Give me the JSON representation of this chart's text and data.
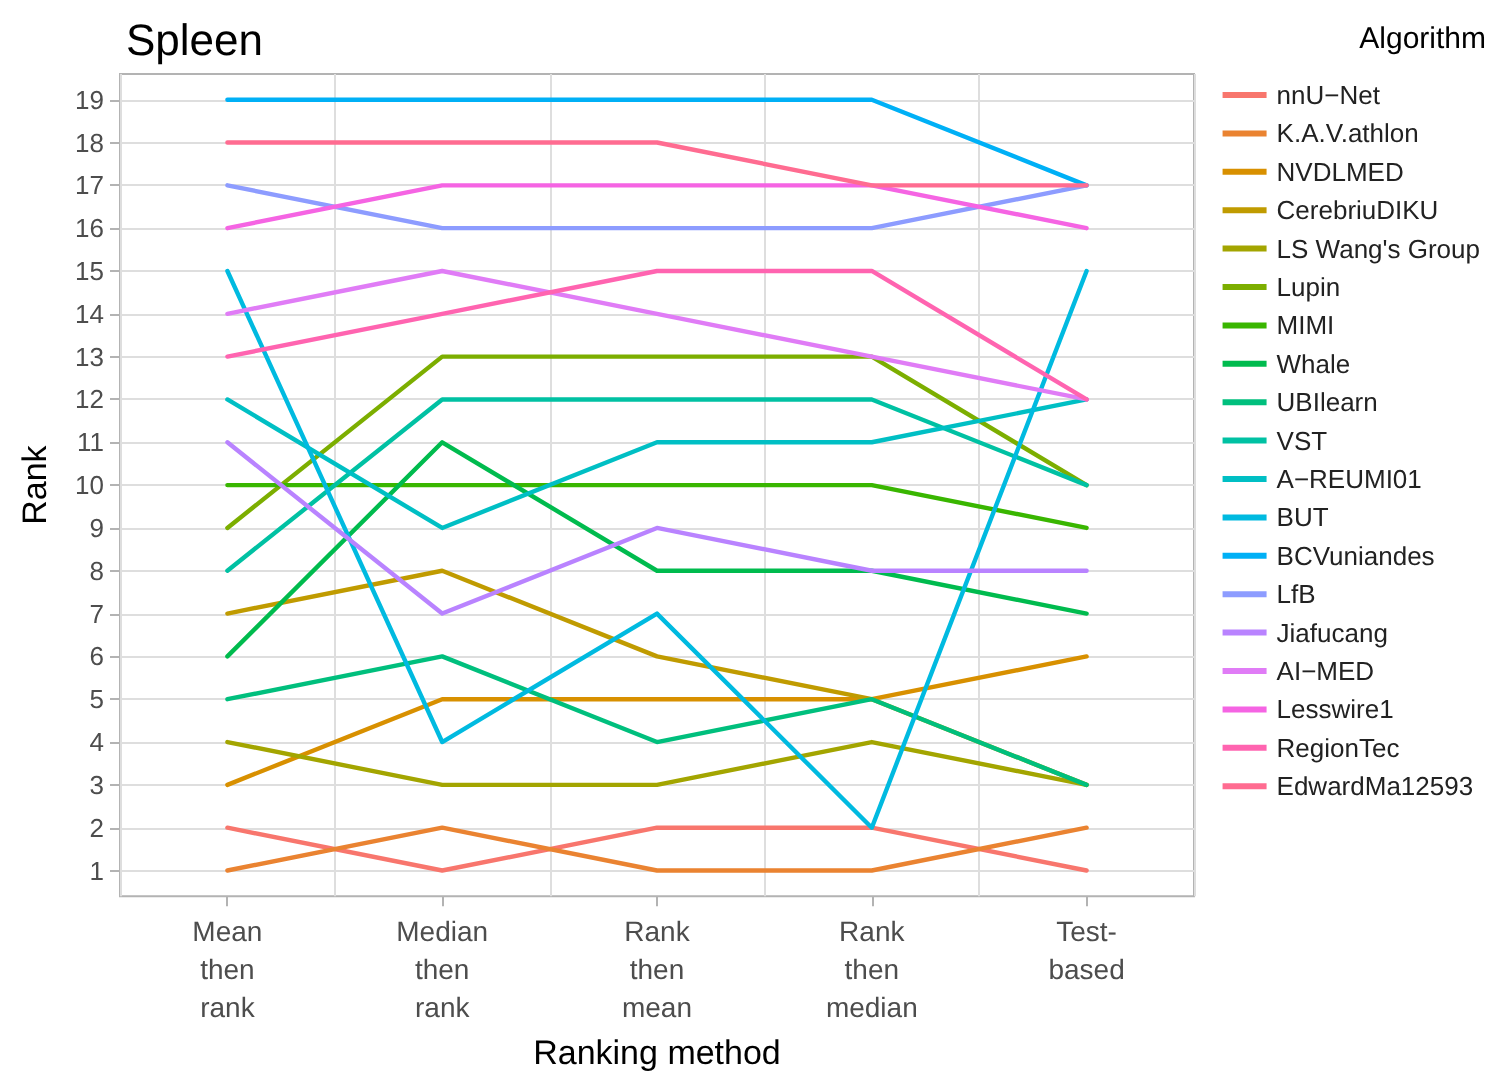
{
  "chart_data": {
    "type": "line",
    "title": "Spleen",
    "xlabel": "Ranking method",
    "ylabel": "Rank",
    "legend_title": "Algorithm",
    "legend": "right",
    "grid": true,
    "marker": "none",
    "line_style": "solid",
    "categories": [
      "Mean\nthen\nrank",
      "Median\nthen\nrank",
      "Rank\nthen\nmean",
      "Rank\nthen\nmedian",
      "Test-\nbased"
    ],
    "ylim": [
      0.4,
      19.6
    ],
    "yticks": [
      1,
      2,
      3,
      4,
      5,
      6,
      7,
      8,
      9,
      10,
      11,
      12,
      13,
      14,
      15,
      16,
      17,
      18,
      19
    ],
    "series": [
      {
        "name": "nnU−Net",
        "color": "#f8766d",
        "values": [
          2,
          1,
          2,
          2,
          1
        ]
      },
      {
        "name": "K.A.V.athlon",
        "color": "#ea8331",
        "values": [
          1,
          2,
          1,
          1,
          2
        ]
      },
      {
        "name": "NVDLMED",
        "color": "#d89000",
        "values": [
          3,
          5,
          5,
          5,
          6
        ]
      },
      {
        "name": "CerebriuDIKU",
        "color": "#c09b00",
        "values": [
          7,
          8,
          6,
          5,
          3
        ]
      },
      {
        "name": "LS Wang's Group",
        "color": "#a3a500",
        "values": [
          4,
          3,
          3,
          4,
          3
        ]
      },
      {
        "name": "Lupin",
        "color": "#7cae00",
        "values": [
          9,
          13,
          13,
          13,
          10
        ]
      },
      {
        "name": "MIMI",
        "color": "#39b600",
        "values": [
          10,
          10,
          10,
          10,
          9
        ]
      },
      {
        "name": "Whale",
        "color": "#00bb4e",
        "values": [
          6,
          11,
          8,
          8,
          7
        ]
      },
      {
        "name": "UBIlearn",
        "color": "#00bf7d",
        "values": [
          5,
          6,
          4,
          5,
          3
        ]
      },
      {
        "name": "VST",
        "color": "#00c1a3",
        "values": [
          8,
          12,
          12,
          12,
          10
        ]
      },
      {
        "name": "A−REUMI01",
        "color": "#00bfc4",
        "values": [
          12,
          9,
          11,
          11,
          12
        ]
      },
      {
        "name": "BUT",
        "color": "#00bae0",
        "values": [
          15,
          4,
          7,
          2,
          15
        ]
      },
      {
        "name": "BCVuniandes",
        "color": "#00b0f6",
        "values": [
          19,
          19,
          19,
          19,
          17
        ]
      },
      {
        "name": "LfB",
        "color": "#8d9cff",
        "values": [
          17,
          16,
          16,
          16,
          17
        ]
      },
      {
        "name": "Jiafucang",
        "color": "#b983ff",
        "values": [
          11,
          7,
          9,
          8,
          8
        ]
      },
      {
        "name": "AI−MED",
        "color": "#e07cf6",
        "values": [
          14,
          15,
          14,
          13,
          12
        ]
      },
      {
        "name": "Lesswire1",
        "color": "#f564e3",
        "values": [
          16,
          17,
          17,
          17,
          16
        ]
      },
      {
        "name": "RegionTec",
        "color": "#ff64b0",
        "values": [
          13,
          14,
          15,
          15,
          12
        ]
      },
      {
        "name": "EdwardMa12593",
        "color": "#ff6c91",
        "values": [
          18,
          18,
          18,
          17,
          17
        ]
      }
    ]
  }
}
